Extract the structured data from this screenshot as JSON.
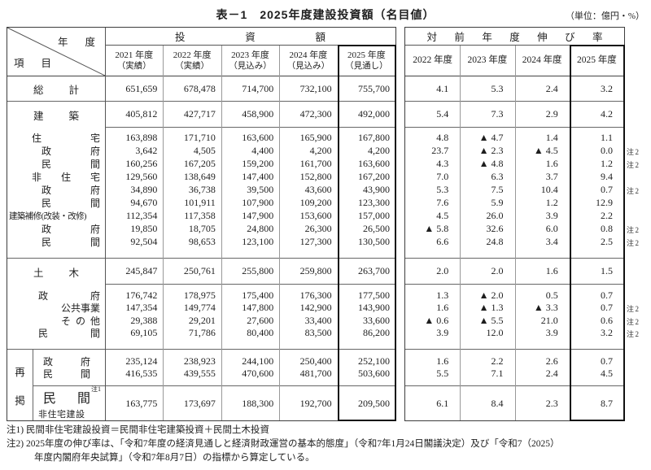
{
  "title": "表－1　2025年度建設投資額（名目値）",
  "unit": "（単位：億円・%）",
  "corner": {
    "top": "年度",
    "bottom": "項目"
  },
  "invest_header": {
    "group": "投資額",
    "cols": [
      {
        "year": "2021 年度",
        "note": "（実績）"
      },
      {
        "year": "2022 年度",
        "note": "（実績）"
      },
      {
        "year": "2023 年度",
        "note": "（見込み）"
      },
      {
        "year": "2024 年度",
        "note": "（見込み）"
      },
      {
        "year": "2025 年度",
        "note": "（見通し）"
      }
    ]
  },
  "growth_header": {
    "group": "対前年度伸び率",
    "cols": [
      "2022 年度",
      "2023 年度",
      "2024 年度",
      "2025 年度"
    ]
  },
  "rows": {
    "sokei": {
      "label": "総計",
      "values": [
        "651,659",
        "678,478",
        "714,700",
        "732,100",
        "755,700"
      ],
      "growth": [
        "4.1",
        "5.3",
        "2.4",
        "3.2"
      ],
      "note": ""
    },
    "kenchiku": {
      "label": "建築",
      "values": [
        "405,812",
        "427,717",
        "458,900",
        "472,300",
        "492,000"
      ],
      "growth": [
        "5.4",
        "7.3",
        "2.9",
        "4.2"
      ],
      "note": ""
    },
    "building": [
      {
        "label": "住宅",
        "values": [
          "163,898",
          "171,710",
          "163,600",
          "165,900",
          "167,800"
        ],
        "growth": [
          "4.8",
          "▲ 4.7",
          "1.4",
          "1.1"
        ],
        "note": ""
      },
      {
        "label": "政府",
        "values": [
          "3,642",
          "4,505",
          "4,400",
          "4,200",
          "4,200"
        ],
        "growth": [
          "23.7",
          "▲ 2.3",
          "▲ 4.5",
          "0.0"
        ],
        "note": "注2"
      },
      {
        "label": "民間",
        "values": [
          "160,256",
          "167,205",
          "159,200",
          "161,700",
          "163,600"
        ],
        "growth": [
          "4.3",
          "▲ 4.8",
          "1.6",
          "1.2"
        ],
        "note": "注2"
      },
      {
        "label": "非住宅",
        "values": [
          "129,560",
          "138,649",
          "147,400",
          "152,800",
          "167,200"
        ],
        "growth": [
          "7.0",
          "6.3",
          "3.7",
          "9.4"
        ],
        "note": ""
      },
      {
        "label": "政府",
        "values": [
          "34,890",
          "36,738",
          "39,500",
          "43,600",
          "43,900"
        ],
        "growth": [
          "5.3",
          "7.5",
          "10.4",
          "0.7"
        ],
        "note": "注2"
      },
      {
        "label": "民間",
        "values": [
          "94,670",
          "101,911",
          "107,900",
          "109,200",
          "123,300"
        ],
        "growth": [
          "7.6",
          "5.9",
          "1.2",
          "12.9"
        ],
        "note": ""
      },
      {
        "label": "建築補修(改装・改修)",
        "values": [
          "112,354",
          "117,358",
          "147,900",
          "153,600",
          "157,000"
        ],
        "growth": [
          "4.5",
          "26.0",
          "3.9",
          "2.2"
        ],
        "note": ""
      },
      {
        "label": "政府",
        "values": [
          "19,850",
          "18,705",
          "24,800",
          "26,300",
          "26,500"
        ],
        "growth": [
          "▲ 5.8",
          "32.6",
          "6.0",
          "0.8"
        ],
        "note": "注2"
      },
      {
        "label": "民間",
        "values": [
          "92,504",
          "98,653",
          "123,100",
          "127,300",
          "130,500"
        ],
        "growth": [
          "6.6",
          "24.8",
          "3.4",
          "2.5"
        ],
        "note": "注2"
      }
    ],
    "doboku": {
      "label": "土木",
      "values": [
        "245,847",
        "250,761",
        "255,800",
        "259,800",
        "263,700"
      ],
      "growth": [
        "2.0",
        "2.0",
        "1.6",
        "1.5"
      ],
      "note": ""
    },
    "civil": [
      {
        "label": "政府",
        "values": [
          "176,742",
          "178,975",
          "175,400",
          "176,300",
          "177,500"
        ],
        "growth": [
          "1.3",
          "▲ 2.0",
          "0.5",
          "0.7"
        ],
        "note": ""
      },
      {
        "label": "公共事業",
        "values": [
          "147,354",
          "149,774",
          "147,800",
          "142,900",
          "143,900"
        ],
        "growth": [
          "1.6",
          "▲ 1.3",
          "▲ 3.3",
          "0.7"
        ],
        "note": "注2"
      },
      {
        "label": "その他",
        "values": [
          "29,388",
          "29,201",
          "27,600",
          "33,400",
          "33,600"
        ],
        "growth": [
          "▲ 0.6",
          "▲ 5.5",
          "21.0",
          "0.6"
        ],
        "note": "注2"
      },
      {
        "label": "民間",
        "values": [
          "69,105",
          "71,786",
          "80,400",
          "83,500",
          "86,200"
        ],
        "growth": [
          "3.9",
          "12.0",
          "3.9",
          "3.2"
        ],
        "note": "注2"
      }
    ],
    "saikei_label": "再掲",
    "saikei": [
      {
        "label": "政府",
        "values": [
          "235,124",
          "238,923",
          "244,100",
          "250,400",
          "252,100"
        ],
        "growth": [
          "1.6",
          "2.2",
          "2.6",
          "0.7"
        ],
        "note": ""
      },
      {
        "label": "民間",
        "values": [
          "416,535",
          "439,555",
          "470,600",
          "481,700",
          "503,600"
        ],
        "growth": [
          "5.5",
          "7.1",
          "2.4",
          "4.5"
        ],
        "note": ""
      }
    ],
    "saikei_b": {
      "label_line1": "民間",
      "label_sup": "注1",
      "label_line2": "非住宅建設",
      "values": [
        "163,775",
        "173,697",
        "188,300",
        "192,700",
        "209,500"
      ],
      "growth": [
        "6.1",
        "8.4",
        "2.3",
        "8.7"
      ],
      "note": ""
    }
  },
  "footnotes": [
    "注1) 民間非住宅建設投資＝民間非住宅建築投資＋民間土木投資",
    "注2) 2025年度の伸び率は、「令和7年度の経済見通しと経済財政運営の基本的態度」（令和7年1月24日閣議決定）及び「令和7（2025）",
    "年度内閣府年央試算」（令和7年8月7日）の指標から算定している。"
  ]
}
